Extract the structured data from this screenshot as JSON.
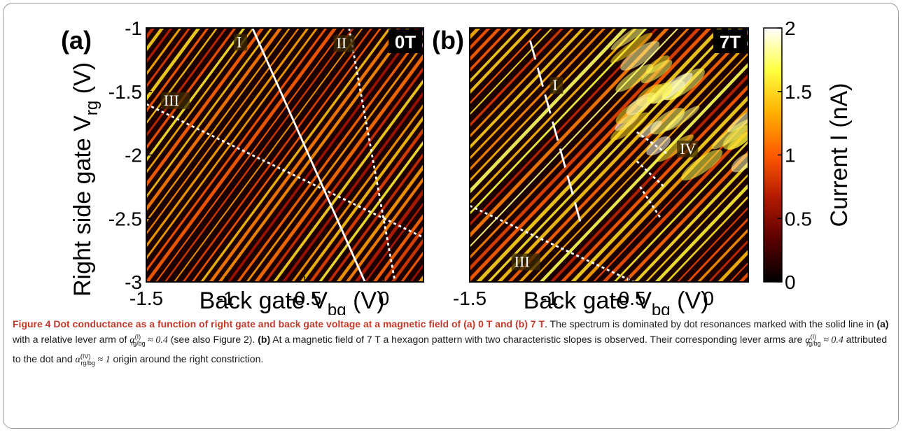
{
  "chart_data": [
    {
      "type": "heatmap",
      "panel_label": "(a)",
      "field_badge": "0T",
      "xlabel": "Back gate V",
      "xlabel_sub": "bg",
      "xlabel_unit": " (V)",
      "ylabel": "Right side gate V",
      "ylabel_sub": "rg",
      "ylabel_unit": " (V)",
      "xlim": [
        -1.5,
        0.25
      ],
      "ylim": [
        -3,
        -1
      ],
      "xticks": [
        "-1.5",
        "-1",
        "-0.5",
        "0"
      ],
      "xtick_values": [
        -1.5,
        -1,
        -0.5,
        0
      ],
      "yticks": [
        "-1",
        "-1.5",
        "-2",
        "-2.5",
        "-3"
      ],
      "ytick_values": [
        -1,
        -1.5,
        -2,
        -2.5,
        -3
      ],
      "annotations": [
        {
          "label": "I",
          "style": "solid",
          "x": [
            -0.83,
            -0.12
          ],
          "y": [
            -1.0,
            -3.0
          ],
          "label_at": [
            -0.93,
            -1.14
          ]
        },
        {
          "label": "II",
          "style": "dotted",
          "x": [
            -0.22,
            0.07
          ],
          "y": [
            -1.0,
            -3.0
          ],
          "label_at": [
            -0.3,
            -1.15
          ]
        },
        {
          "label": "III",
          "style": "dotted",
          "x": [
            -1.5,
            0.25
          ],
          "y": [
            -1.6,
            -2.65
          ],
          "label_at": [
            -1.39,
            -1.6
          ]
        }
      ]
    },
    {
      "type": "heatmap",
      "panel_label": "(b)",
      "field_badge": "7T",
      "xlabel": "Back gate V",
      "xlabel_sub": "bg",
      "xlabel_unit": " (V)",
      "xlim": [
        -1.5,
        0.25
      ],
      "ylim": [
        -3,
        -1
      ],
      "xticks": [
        "-1.5",
        "-1",
        "-0.5",
        "0"
      ],
      "xtick_values": [
        -1.5,
        -1,
        -0.5,
        0
      ],
      "annotations": [
        {
          "label": "I",
          "style": "dashed",
          "x": [
            -1.12,
            -0.8
          ],
          "y": [
            -1.1,
            -2.55
          ],
          "label_at": [
            -0.98,
            -1.48
          ]
        },
        {
          "label": "III",
          "style": "dotted",
          "x": [
            -1.5,
            -0.47
          ],
          "y": [
            -2.4,
            -3.0
          ],
          "label_at": [
            -1.22,
            -2.87
          ]
        },
        {
          "label": "IV",
          "style": "dotted",
          "x": [
            -0.45,
            -0.25
          ],
          "y": [
            -1.82,
            -2.0
          ],
          "label_at": [
            -0.18,
            -1.98
          ]
        },
        {
          "label": "",
          "style": "dotted",
          "x": [
            -0.45,
            -0.28
          ],
          "y": [
            -2.05,
            -2.25
          ]
        },
        {
          "label": "",
          "style": "dotted",
          "x": [
            -0.43,
            -0.3
          ],
          "y": [
            -2.25,
            -2.5
          ]
        }
      ]
    }
  ],
  "colorbar": {
    "label": "Current I (nA)",
    "range": [
      0,
      2
    ],
    "ticks": [
      "0",
      "0.5",
      "1",
      "1.5",
      "2"
    ],
    "tick_values": [
      0,
      0.5,
      1,
      1.5,
      2
    ],
    "colormap": [
      "#000000",
      "#5a0000",
      "#b31900",
      "#ff5a00",
      "#ffb000",
      "#ffff40",
      "#ffffff"
    ]
  },
  "caption": {
    "title": "Figure 4 Dot conductance as a function of right gate and back gate voltage at a magnetic field of (a) 0 T and (b) 7 T",
    "parts": [
      {
        "t": ". The spectrum is dominated by dot resonances marked with the solid line in ",
        "s": ""
      },
      {
        "t": "(a)",
        "s": "b"
      },
      {
        "t": " with a relative lever arm of ",
        "s": ""
      },
      {
        "t": "α",
        "s": "m"
      },
      {
        "t": "(I)",
        "s": "sup"
      },
      {
        "t": "rg/bg",
        "s": "sub"
      },
      {
        "t": " ≈ 0.4",
        "s": "m"
      },
      {
        "t": " (see also Figure 2). ",
        "s": ""
      },
      {
        "t": "(b)",
        "s": "b"
      },
      {
        "t": " At a magnetic field of 7 T a hexagon pattern with two characteristic slopes is observed. Their corresponding lever arms are ",
        "s": ""
      },
      {
        "t": "α",
        "s": "m"
      },
      {
        "t": "(I)",
        "s": "sup"
      },
      {
        "t": "rg/bg",
        "s": "sub"
      },
      {
        "t": " ≈ 0.4",
        "s": "m"
      },
      {
        "t": " attributed to the dot and ",
        "s": ""
      },
      {
        "t": "α",
        "s": "m"
      },
      {
        "t": "(IV)",
        "s": "sup"
      },
      {
        "t": "rg/bg",
        "s": "sub"
      },
      {
        "t": " ≈ 1",
        "s": "m"
      },
      {
        "t": " origin around the right constriction.",
        "s": ""
      }
    ]
  }
}
